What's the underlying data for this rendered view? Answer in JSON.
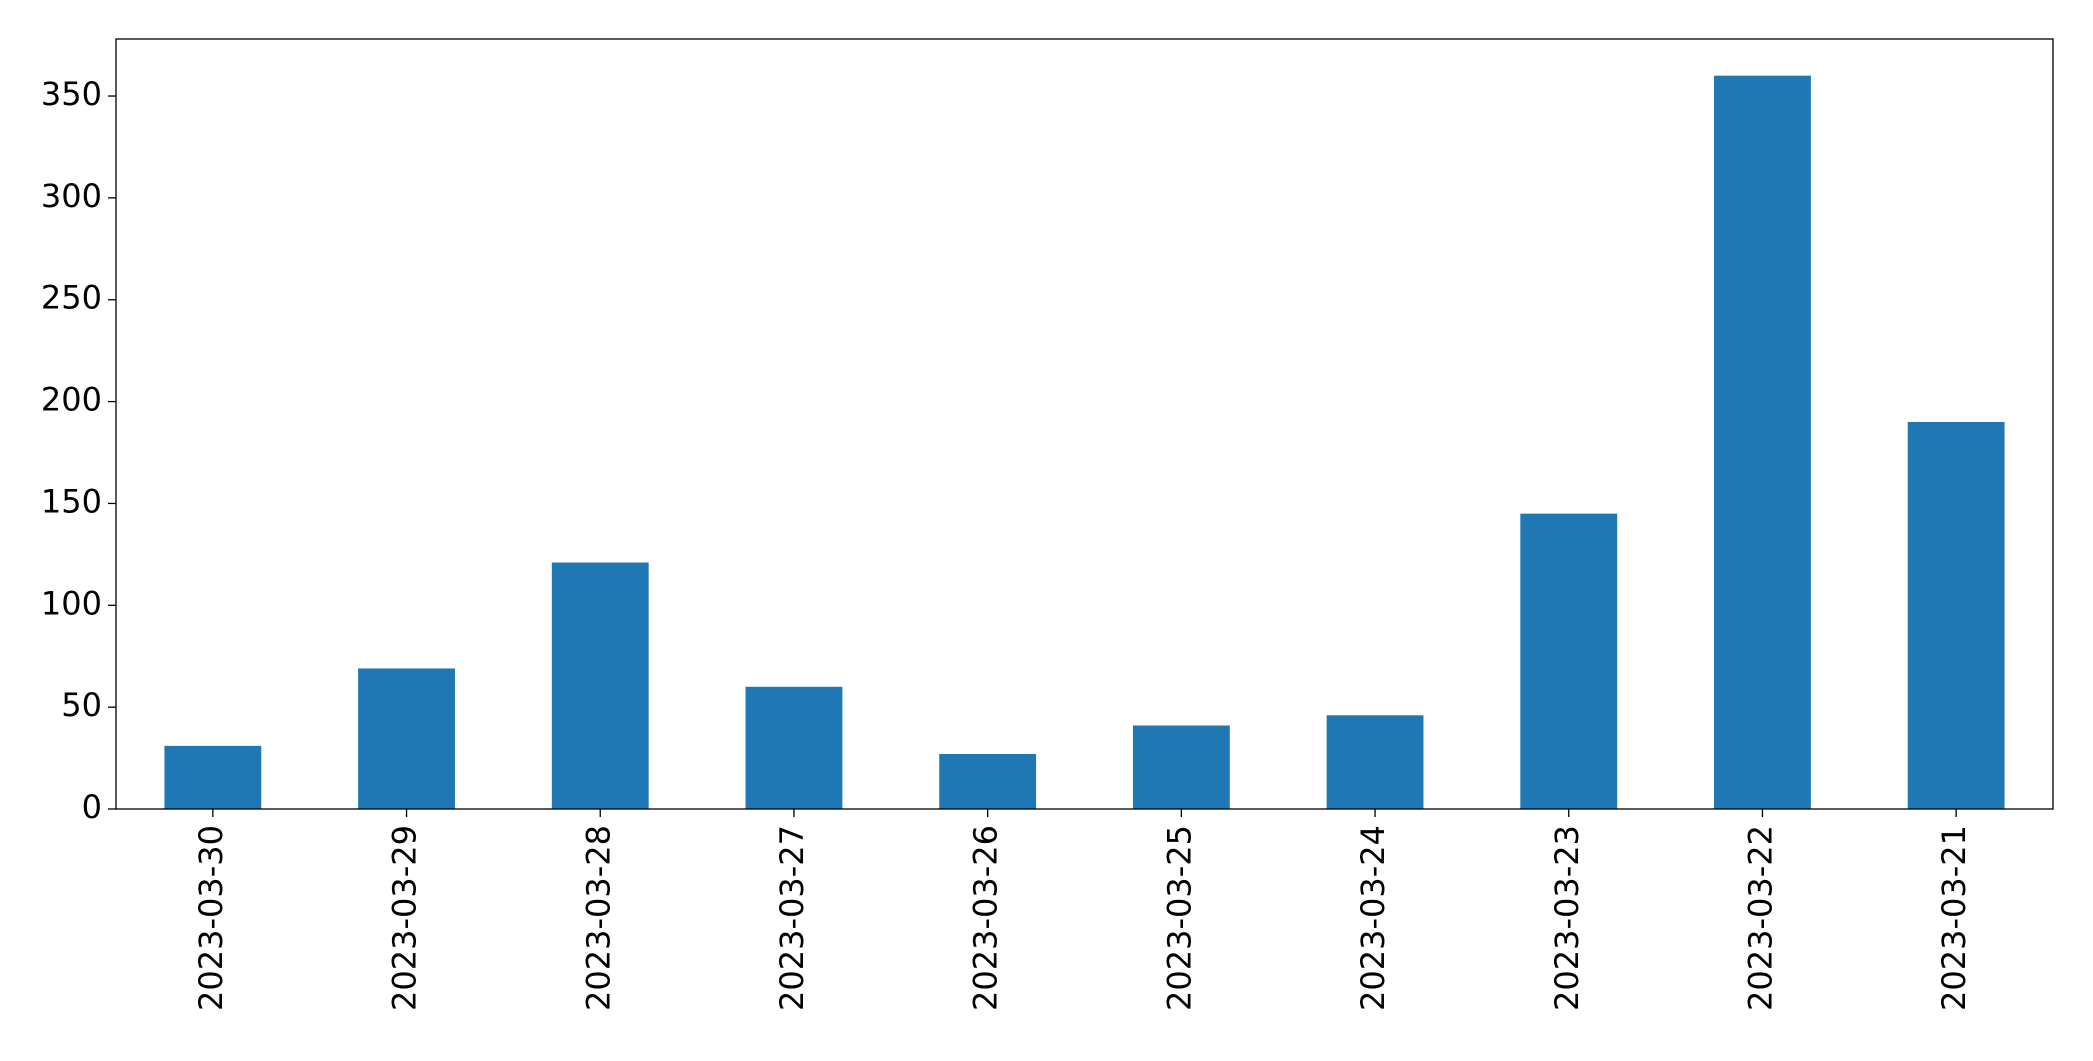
{
  "chart_data": {
    "type": "bar",
    "categories": [
      "2023-03-30",
      "2023-03-29",
      "2023-03-28",
      "2023-03-27",
      "2023-03-26",
      "2023-03-25",
      "2023-03-24",
      "2023-03-23",
      "2023-03-22",
      "2023-03-21"
    ],
    "values": [
      31,
      69,
      121,
      60,
      27,
      41,
      46,
      145,
      360,
      190
    ],
    "color": "#1f77b4",
    "ylim": [
      0,
      378
    ],
    "yticks": [
      0,
      50,
      100,
      150,
      200,
      250,
      300,
      350
    ],
    "grid": false
  }
}
